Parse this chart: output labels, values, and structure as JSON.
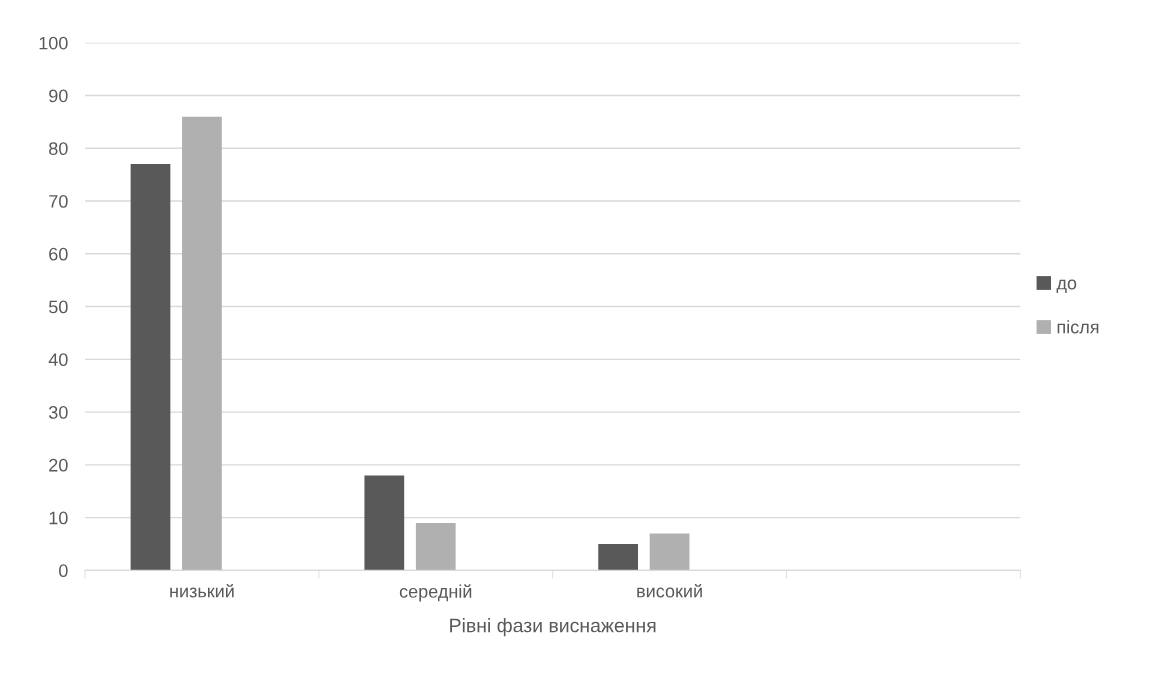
{
  "chart_data": {
    "type": "bar",
    "xlabel": "Рівні фази виснаження",
    "categories": [
      "низький",
      "середній",
      "високий",
      null
    ],
    "series": [
      {
        "name": "до",
        "color": "#595959",
        "values": [
          77,
          18,
          5,
          null
        ]
      },
      {
        "name": "після",
        "color": "#b0b0b0",
        "values": [
          86,
          9,
          7,
          null
        ]
      }
    ],
    "ylim": [
      0,
      100
    ],
    "yticks": [
      0,
      10,
      20,
      30,
      40,
      50,
      60,
      70,
      80,
      90,
      100
    ],
    "grid": "y",
    "legend": "right"
  }
}
